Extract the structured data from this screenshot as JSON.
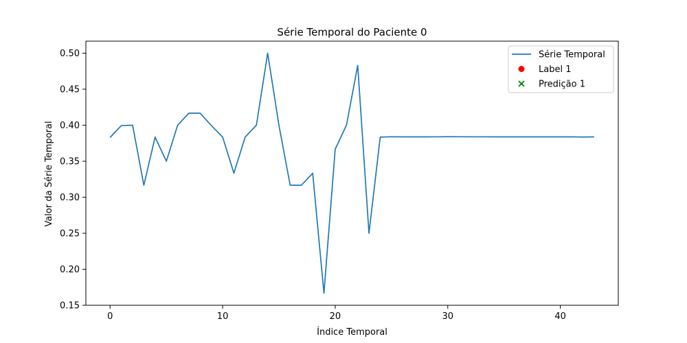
{
  "chart_data": {
    "type": "line",
    "title": "Série Temporal do Paciente 0",
    "xlabel": "Índice Temporal",
    "ylabel": "Valor da Série Temporal",
    "xlim": [
      -2.15,
      45.15
    ],
    "ylim": [
      0.15,
      0.5167
    ],
    "x_ticks": [
      0,
      10,
      20,
      30,
      40
    ],
    "x_tick_labels": [
      "0",
      "10",
      "20",
      "30",
      "40"
    ],
    "y_ticks": [
      0.15,
      0.2,
      0.25,
      0.3,
      0.35,
      0.4,
      0.45,
      0.5
    ],
    "y_tick_labels": [
      "0.15",
      "0.20",
      "0.25",
      "0.30",
      "0.35",
      "0.40",
      "0.45",
      "0.50"
    ],
    "grid": false,
    "legend_position": "top-right",
    "series": [
      {
        "name": "Série Temporal",
        "color": "#1f77b4",
        "x": [
          0,
          1,
          2,
          3,
          4,
          5,
          6,
          7,
          8,
          9,
          10,
          11,
          12,
          13,
          14,
          15,
          16,
          17,
          18,
          19,
          20,
          21,
          22,
          23,
          24,
          25,
          26,
          27,
          28,
          29,
          30,
          31,
          32,
          33,
          34,
          35,
          36,
          37,
          38,
          39,
          40,
          41,
          42,
          43
        ],
        "y": [
          0.383,
          0.3995,
          0.4,
          0.3167,
          0.3835,
          0.35,
          0.4,
          0.4167,
          0.4167,
          0.3995,
          0.3835,
          0.3335,
          0.3835,
          0.4,
          0.5,
          0.4,
          0.3167,
          0.3167,
          0.3333,
          0.1667,
          0.3667,
          0.4,
          0.483,
          0.25,
          0.3835,
          0.384,
          0.3838,
          0.3838,
          0.3838,
          0.3839,
          0.3841,
          0.384,
          0.3839,
          0.3839,
          0.3838,
          0.3838,
          0.3838,
          0.3838,
          0.3838,
          0.3838,
          0.3838,
          0.3839,
          0.3836,
          0.3838
        ]
      }
    ],
    "legend": [
      {
        "label": "Série Temporal",
        "kind": "line",
        "color": "#1f77b4"
      },
      {
        "label": "Label 1",
        "kind": "dot",
        "color": "#ff0000"
      },
      {
        "label": "Predição 1",
        "kind": "x",
        "color": "#008000"
      }
    ]
  }
}
